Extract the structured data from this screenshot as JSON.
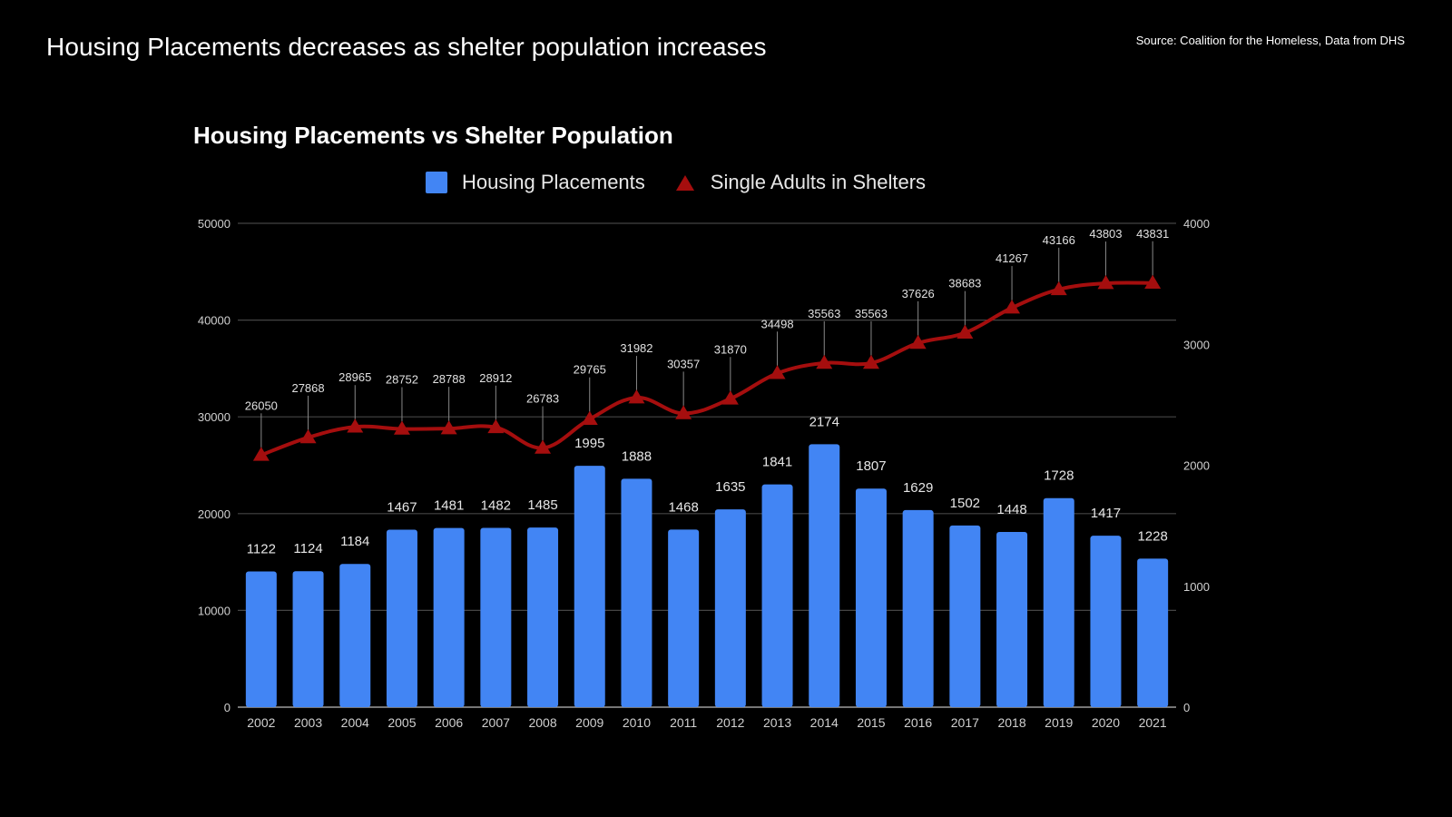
{
  "slide": {
    "title": "Housing Placements decreases as shelter population increases",
    "source": "Source: Coalition for the Homeless, Data from DHS"
  },
  "chart_data": {
    "type": "bar+line",
    "title": "Housing Placements vs Shelter Population",
    "legend": {
      "position": "top-center",
      "entries": [
        "Housing Placements",
        "Single Adults in Shelters"
      ]
    },
    "categories": [
      "2002",
      "2003",
      "2004",
      "2005",
      "2006",
      "2007",
      "2008",
      "2009",
      "2010",
      "2011",
      "2012",
      "2013",
      "2014",
      "2015",
      "2016",
      "2017",
      "2018",
      "2019",
      "2020",
      "2021"
    ],
    "series": [
      {
        "name": "Housing Placements",
        "type": "bar",
        "axis": "right",
        "color": "#4285f4",
        "values": [
          1122,
          1124,
          1184,
          1467,
          1481,
          1482,
          1485,
          1995,
          1888,
          1468,
          1635,
          1841,
          2174,
          1807,
          1629,
          1502,
          1448,
          1728,
          1417,
          1228
        ]
      },
      {
        "name": "Single Adults in Shelters",
        "type": "line",
        "marker": "triangle",
        "axis": "left",
        "color": "#a50e0e",
        "values": [
          26050,
          27868,
          28965,
          28752,
          28788,
          28912,
          26783,
          29765,
          31982,
          30357,
          31870,
          34498,
          35563,
          35563,
          37626,
          38683,
          41267,
          43166,
          43803,
          43831
        ]
      }
    ],
    "left_axis": {
      "ylim": [
        0,
        50000
      ],
      "ticks": [
        "0",
        "10000",
        "20000",
        "30000",
        "40000",
        "50000"
      ]
    },
    "right_axis": {
      "ylim": [
        0,
        4000
      ],
      "ticks": [
        "0",
        "1000",
        "2000",
        "3000",
        "4000"
      ]
    },
    "xlabel": "",
    "grid": true
  }
}
